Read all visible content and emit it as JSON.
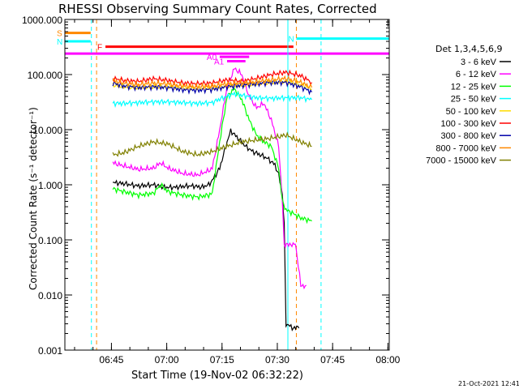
{
  "chart_data": {
    "type": "line",
    "title": "RHESSI Observing Summary Count Rates, Corrected",
    "xlabel": "Start Time (19-Nov-02 06:32:22)",
    "ylabel": "Corrected Count Rate (s⁻¹ detector⁻¹)",
    "yscale": "log",
    "ylim": [
      0.001,
      1000
    ],
    "xlim_minutes": [
      0,
      88
    ],
    "y_ticks": [
      "1000.000",
      "100.000",
      "10.000",
      "1.000",
      "0.100",
      "0.010",
      "0.001"
    ],
    "x_ticks": [
      "06:45",
      "07:00",
      "07:15",
      "07:30",
      "07:45",
      "08:00"
    ],
    "legend_title": "Det 1,3,4,5,6,9",
    "legend_placement": "right",
    "footer": "21-Oct-2021 12:41",
    "series": [
      {
        "name": "3 - 6 keV",
        "color": "#000000",
        "points": [
          [
            13,
            1.1
          ],
          [
            16,
            1.05
          ],
          [
            20,
            0.95
          ],
          [
            24,
            1.0
          ],
          [
            27,
            0.9
          ],
          [
            30,
            0.9
          ],
          [
            33,
            0.95
          ],
          [
            35,
            0.95
          ],
          [
            37,
            0.9
          ],
          [
            39,
            1.0
          ],
          [
            40,
            1.2
          ],
          [
            42,
            2.0
          ],
          [
            44,
            6
          ],
          [
            45,
            9.5
          ],
          [
            47,
            7
          ],
          [
            49,
            5
          ],
          [
            51,
            4
          ],
          [
            53,
            3.5
          ],
          [
            55,
            3
          ],
          [
            57,
            2.3
          ],
          [
            58,
            1.5
          ],
          [
            59,
            0.7
          ],
          [
            59.5,
            0.2
          ],
          [
            60,
            0.003
          ],
          [
            62,
            0.0025
          ],
          [
            63.5,
            0.0025
          ]
        ]
      },
      {
        "name": "6 - 12 keV",
        "color": "#ff00ff",
        "points": [
          [
            13,
            2.5
          ],
          [
            16,
            2.2
          ],
          [
            20,
            1.9
          ],
          [
            24,
            2.0
          ],
          [
            26,
            2.5
          ],
          [
            28,
            2.0
          ],
          [
            32,
            1.6
          ],
          [
            36,
            1.5
          ],
          [
            39,
            1.8
          ],
          [
            40,
            2.0
          ],
          [
            42,
            10
          ],
          [
            44,
            60
          ],
          [
            46,
            130
          ],
          [
            48,
            100
          ],
          [
            50,
            40
          ],
          [
            52,
            25
          ],
          [
            54,
            30
          ],
          [
            56,
            15
          ],
          [
            58,
            5
          ],
          [
            59,
            0.5
          ],
          [
            59.5,
            0.08
          ],
          [
            61,
            0.08
          ],
          [
            62.5,
            0.09
          ],
          [
            63,
            0.05
          ],
          [
            64,
            0.015
          ],
          [
            65.5,
            0.015
          ]
        ]
      },
      {
        "name": "12 - 25 keV",
        "color": "#00ff00",
        "points": [
          [
            13,
            0.85
          ],
          [
            16,
            0.75
          ],
          [
            20,
            0.65
          ],
          [
            24,
            0.7
          ],
          [
            26,
            1.0
          ],
          [
            28,
            0.75
          ],
          [
            32,
            0.65
          ],
          [
            36,
            0.6
          ],
          [
            39,
            0.65
          ],
          [
            40,
            0.7
          ],
          [
            42,
            6
          ],
          [
            44,
            40
          ],
          [
            46,
            55
          ],
          [
            48,
            35
          ],
          [
            50,
            15
          ],
          [
            52,
            8
          ],
          [
            54,
            6
          ],
          [
            56,
            5
          ],
          [
            58,
            2
          ],
          [
            59,
            0.5
          ],
          [
            60,
            0.35
          ],
          [
            62,
            0.3
          ],
          [
            64,
            0.25
          ],
          [
            67,
            0.22
          ]
        ]
      },
      {
        "name": "25 - 50 keV",
        "color": "#00ffff",
        "points": [
          [
            13,
            30
          ],
          [
            16,
            30
          ],
          [
            20,
            31
          ],
          [
            24,
            32
          ],
          [
            28,
            32
          ],
          [
            32,
            31
          ],
          [
            36,
            30
          ],
          [
            40,
            31
          ],
          [
            42,
            36
          ],
          [
            44,
            40
          ],
          [
            46,
            45
          ],
          [
            48,
            42
          ],
          [
            52,
            38
          ],
          [
            56,
            37
          ],
          [
            60,
            38
          ],
          [
            64,
            38
          ],
          [
            67,
            35
          ]
        ]
      },
      {
        "name": "50 - 100 keV",
        "color": "#ffdd00",
        "points": [
          [
            13,
            65
          ],
          [
            16,
            60
          ],
          [
            20,
            58
          ],
          [
            24,
            60
          ],
          [
            28,
            60
          ],
          [
            32,
            57
          ],
          [
            36,
            56
          ],
          [
            40,
            57
          ],
          [
            44,
            62
          ],
          [
            48,
            64
          ],
          [
            52,
            68
          ],
          [
            56,
            72
          ],
          [
            60,
            74
          ],
          [
            64,
            65
          ],
          [
            67,
            55
          ]
        ]
      },
      {
        "name": "100 - 300 keV",
        "color": "#ff0000",
        "points": [
          [
            13,
            85
          ],
          [
            16,
            78
          ],
          [
            20,
            75
          ],
          [
            24,
            84
          ],
          [
            28,
            78
          ],
          [
            32,
            70
          ],
          [
            36,
            68
          ],
          [
            40,
            70
          ],
          [
            44,
            80
          ],
          [
            48,
            75
          ],
          [
            52,
            85
          ],
          [
            56,
            100
          ],
          [
            60,
            110
          ],
          [
            64,
            95
          ],
          [
            67,
            72
          ]
        ]
      },
      {
        "name": "300 - 800 keV",
        "color": "#0000aa",
        "points": [
          [
            13,
            70
          ],
          [
            16,
            62
          ],
          [
            20,
            58
          ],
          [
            24,
            60
          ],
          [
            28,
            58
          ],
          [
            32,
            53
          ],
          [
            36,
            52
          ],
          [
            40,
            54
          ],
          [
            44,
            60
          ],
          [
            48,
            64
          ],
          [
            52,
            68
          ],
          [
            56,
            72
          ],
          [
            60,
            72
          ],
          [
            64,
            60
          ],
          [
            67,
            48
          ]
        ]
      },
      {
        "name": "800 - 7000 keV",
        "color": "#ff8800",
        "points": [
          [
            13,
            78
          ],
          [
            16,
            70
          ],
          [
            20,
            66
          ],
          [
            24,
            70
          ],
          [
            28,
            68
          ],
          [
            32,
            62
          ],
          [
            36,
            60
          ],
          [
            40,
            62
          ],
          [
            44,
            68
          ],
          [
            48,
            70
          ],
          [
            52,
            74
          ],
          [
            56,
            80
          ],
          [
            60,
            85
          ],
          [
            64,
            72
          ],
          [
            67,
            58
          ]
        ]
      },
      {
        "name": "7000 - 15000 keV",
        "color": "#808000",
        "points": [
          [
            13,
            3.5
          ],
          [
            16,
            3.8
          ],
          [
            20,
            5
          ],
          [
            24,
            6
          ],
          [
            28,
            5.5
          ],
          [
            32,
            4
          ],
          [
            36,
            3.5
          ],
          [
            40,
            4
          ],
          [
            44,
            5
          ],
          [
            48,
            6
          ],
          [
            52,
            6.5
          ],
          [
            56,
            7
          ],
          [
            60,
            8
          ],
          [
            64,
            6
          ],
          [
            67,
            5
          ]
        ]
      }
    ],
    "attenuator_flags": [
      {
        "label": "S",
        "color": "#ff8800",
        "y": 570,
        "from": 0,
        "to": 7
      },
      {
        "label": "N",
        "color": "#00ffff",
        "y": 400,
        "from": 0,
        "to": 7
      },
      {
        "label": "N",
        "color": "#00ffff",
        "y": 450,
        "from": 62.8,
        "to": 88
      },
      {
        "label": "F",
        "color": "#ff0000",
        "y": 320,
        "from": 11,
        "to": 62
      },
      {
        "label": "",
        "color": "#ff00ff",
        "y": 240,
        "from": 0,
        "to": 88
      },
      {
        "label": "A0",
        "color": "#ff00ff",
        "y": 210,
        "from": 42,
        "to": 50
      },
      {
        "label": "A1",
        "color": "#ff00ff",
        "y": 175,
        "from": 44,
        "to": 49
      }
    ],
    "vertical_markers": [
      {
        "minute": 7.2,
        "color": "#00ffff",
        "style": "dashed"
      },
      {
        "minute": 8.6,
        "color": "#ff8800",
        "style": "dashed"
      },
      {
        "minute": 60.5,
        "color": "#00ffff",
        "style": "solid"
      },
      {
        "minute": 62.8,
        "color": "#ff8800",
        "style": "dashed"
      },
      {
        "minute": 69.5,
        "color": "#00ffff",
        "style": "dashed"
      }
    ]
  }
}
